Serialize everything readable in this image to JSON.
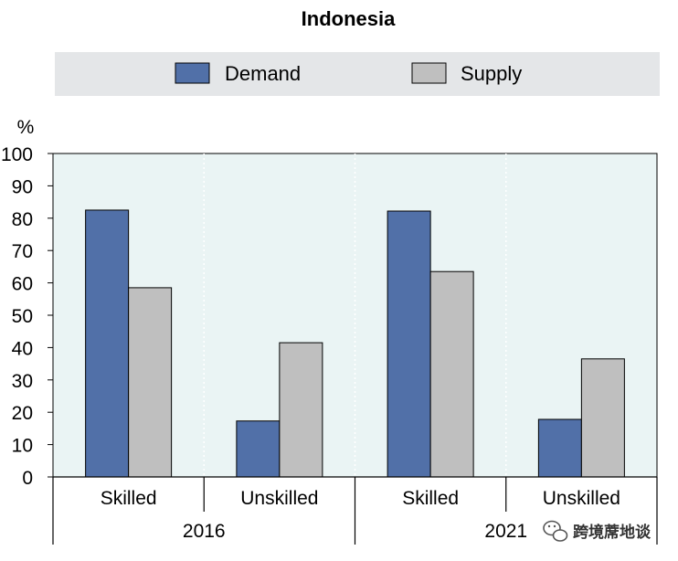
{
  "chart_data": {
    "type": "bar",
    "title": "Indonesia",
    "ylabel": "%",
    "xlabel": "",
    "ylim": [
      0,
      100
    ],
    "yticks": [
      0,
      10,
      20,
      30,
      40,
      50,
      60,
      70,
      80,
      90,
      100
    ],
    "grid": false,
    "legend_position": "top",
    "groups": [
      {
        "label": "2016",
        "categories": [
          "Skilled",
          "Unskilled"
        ]
      },
      {
        "label": "2021",
        "categories": [
          "Skilled",
          "Unskilled"
        ]
      }
    ],
    "categories": [
      "Skilled",
      "Unskilled",
      "Skilled",
      "Unskilled"
    ],
    "series": [
      {
        "name": "Demand",
        "color": "#5170a8",
        "values": [
          82.5,
          17.3,
          82.2,
          17.8
        ]
      },
      {
        "name": "Supply",
        "color": "#bfbfbf",
        "values": [
          58.5,
          41.5,
          63.5,
          36.5
        ]
      }
    ]
  },
  "watermark": {
    "icon": "wechat-icon",
    "text": "跨境蓆地谈"
  }
}
